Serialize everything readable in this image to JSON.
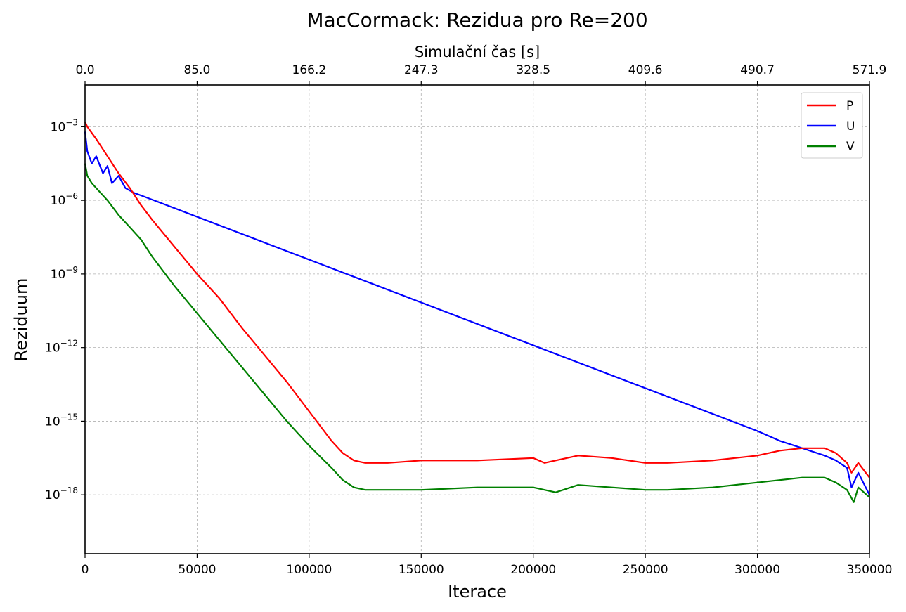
{
  "chart_data": {
    "type": "line",
    "title": "MacCormack: Rezidua pro Re=200",
    "xlabel": "Iterace",
    "ylabel": "Reziduum",
    "x2label": "Simulační čas [s]",
    "xlim": [
      0,
      350000
    ],
    "ylog": true,
    "ylim_exp": [
      -20.4,
      -1.3
    ],
    "grid": true,
    "legend_position": "top-right",
    "x_ticks": [
      0,
      50000,
      100000,
      150000,
      200000,
      250000,
      300000,
      350000
    ],
    "x_tick_labels": [
      "0",
      "50000",
      "100000",
      "150000",
      "200000",
      "250000",
      "300000",
      "350000"
    ],
    "x2_tick_positions": [
      0,
      50000,
      100000,
      150000,
      200000,
      250000,
      300000,
      350000
    ],
    "x2_tick_labels": [
      "0.0",
      "85.0",
      "166.2",
      "247.3",
      "328.5",
      "409.6",
      "490.7",
      "571.9"
    ],
    "y_tick_exponents": [
      -3,
      -6,
      -9,
      -12,
      -15,
      -18
    ],
    "y_tick_labels": [
      "10",
      "10",
      "10",
      "10",
      "10",
      "10"
    ],
    "y_tick_superscripts": [
      "−3",
      "−6",
      "−9",
      "−12",
      "−15",
      "−18"
    ],
    "series": [
      {
        "name": "P",
        "color": "#ff0000",
        "x": [
          0,
          1000,
          5000,
          10000,
          15000,
          20000,
          25000,
          30000,
          40000,
          50000,
          60000,
          70000,
          80000,
          90000,
          100000,
          110000,
          115000,
          120000,
          125000,
          135000,
          150000,
          175000,
          200000,
          205000,
          210000,
          220000,
          235000,
          250000,
          260000,
          280000,
          290000,
          300000,
          310000,
          320000,
          330000,
          335000,
          340000,
          342000,
          345000,
          350000
        ],
        "log10_y": [
          -2.8,
          -3.0,
          -3.5,
          -4.2,
          -4.9,
          -5.5,
          -6.2,
          -6.8,
          -7.9,
          -9.0,
          -10.0,
          -11.2,
          -12.3,
          -13.4,
          -14.6,
          -15.8,
          -16.3,
          -16.6,
          -16.7,
          -16.7,
          -16.6,
          -16.6,
          -16.5,
          -16.7,
          -16.6,
          -16.4,
          -16.5,
          -16.7,
          -16.7,
          -16.6,
          -16.5,
          -16.4,
          -16.2,
          -16.1,
          -16.1,
          -16.3,
          -16.7,
          -17.1,
          -16.7,
          -17.3
        ]
      },
      {
        "name": "U",
        "color": "#0000ff",
        "x": [
          0,
          1000,
          3000,
          5000,
          8000,
          10000,
          12000,
          15000,
          18000,
          20000,
          22000,
          25000,
          300000,
          310000,
          320000,
          330000,
          335000,
          340000,
          342000,
          345000,
          350000
        ],
        "log10_y": [
          -3.2,
          -4.0,
          -4.5,
          -4.2,
          -4.9,
          -4.6,
          -5.3,
          -5.0,
          -5.5,
          -5.6,
          -5.7,
          -5.8,
          -15.4,
          -15.8,
          -16.1,
          -16.4,
          -16.6,
          -16.9,
          -17.7,
          -17.1,
          -18.0
        ]
      },
      {
        "name": "V",
        "color": "#008000",
        "x": [
          0,
          1000,
          3000,
          5000,
          10000,
          15000,
          20000,
          25000,
          30000,
          40000,
          50000,
          60000,
          70000,
          80000,
          90000,
          100000,
          110000,
          115000,
          120000,
          125000,
          135000,
          150000,
          175000,
          200000,
          205000,
          210000,
          220000,
          235000,
          250000,
          260000,
          280000,
          290000,
          300000,
          310000,
          320000,
          330000,
          335000,
          340000,
          343000,
          345000,
          350000
        ],
        "log10_y": [
          -4.5,
          -5.0,
          -5.3,
          -5.5,
          -6.0,
          -6.6,
          -7.1,
          -7.6,
          -8.3,
          -9.5,
          -10.6,
          -11.7,
          -12.8,
          -13.9,
          -15.0,
          -16.0,
          -16.9,
          -17.4,
          -17.7,
          -17.8,
          -17.8,
          -17.8,
          -17.7,
          -17.7,
          -17.8,
          -17.9,
          -17.6,
          -17.7,
          -17.8,
          -17.8,
          -17.7,
          -17.6,
          -17.5,
          -17.4,
          -17.3,
          -17.3,
          -17.5,
          -17.8,
          -18.3,
          -17.7,
          -18.1
        ]
      }
    ]
  }
}
